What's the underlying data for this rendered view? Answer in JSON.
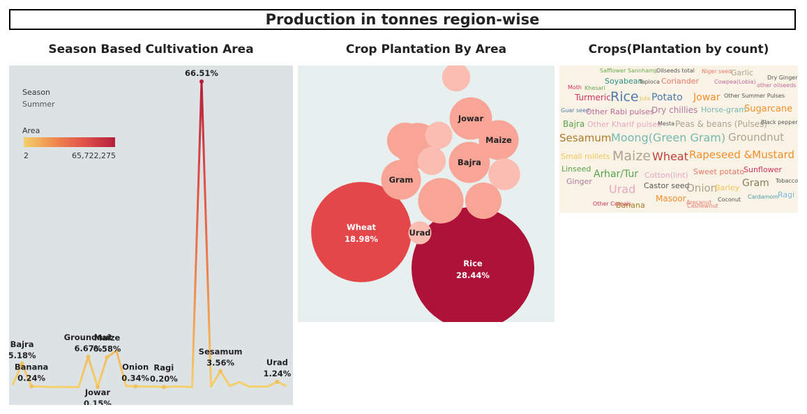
{
  "title": "Production in tonnes region-wise",
  "sections": {
    "line": "Season Based Cultivation Area",
    "bubble": "Crop Plantation By Area",
    "cloud": "Crops(Plantation by count)"
  },
  "legend": {
    "filter_label": "Season",
    "filter_value": "Summer",
    "color_label": "Area",
    "color_min": "2",
    "color_max": "65,722,275",
    "colors": [
      "#f4d06a",
      "#ef8a4e",
      "#e0504a",
      "#b51f3b"
    ]
  },
  "chart_data": [
    {
      "type": "line",
      "title": "Season Based Cultivation Area",
      "ylabel": "",
      "xlabel": "",
      "unit": "% of area",
      "ylim": [
        0,
        70
      ],
      "values": [
        0.5,
        5.18,
        0.24,
        0.2,
        0.1,
        0.15,
        0.1,
        0.1,
        6.67,
        0.15,
        6.58,
        8.0,
        0.34,
        0.25,
        0.2,
        0.2,
        0.1,
        0.2,
        0.2,
        0.1,
        66.51,
        0.2,
        3.56,
        0.3,
        1.2,
        0.2,
        0.2,
        0.2,
        1.24,
        0.3
      ],
      "point_labels": [
        {
          "index": 1,
          "name": "Bajra",
          "value": "5.18%",
          "pos": "above"
        },
        {
          "index": 2,
          "name": "Banana",
          "value": "0.24%",
          "pos": "above"
        },
        {
          "index": 8,
          "name": "Groundnut",
          "value": "6.67%",
          "pos": "above"
        },
        {
          "index": 9,
          "name": "Jowar",
          "value": "0.15%",
          "pos": "below"
        },
        {
          "index": 10,
          "name": "Maize",
          "value": "6.58%",
          "pos": "above"
        },
        {
          "index": 13,
          "name": "Onion",
          "value": "0.34%",
          "pos": "above"
        },
        {
          "index": 16,
          "name": "Ragi",
          "value": "0.20%",
          "pos": "above"
        },
        {
          "index": 20,
          "name": "Rice",
          "value": "66.51%",
          "pos": "above"
        },
        {
          "index": 22,
          "name": "Sesamum",
          "value": "3.56%",
          "pos": "above"
        },
        {
          "index": 28,
          "name": "Urad",
          "value": "1.24%",
          "pos": "above"
        }
      ]
    },
    {
      "type": "bubble",
      "title": "Crop Plantation By Area",
      "bubbles": [
        {
          "name": "Rice",
          "value": "28.44%",
          "share": 28.44,
          "color": "#ae1238"
        },
        {
          "name": "Wheat",
          "value": "18.98%",
          "share": 18.98,
          "color": "#e4474a"
        },
        {
          "name": "Jowar",
          "value": "",
          "share": 3.4,
          "color": "#f8a597"
        },
        {
          "name": "Maize",
          "value": "",
          "share": 3.0,
          "color": "#f8a597"
        },
        {
          "name": "Bajra",
          "value": "",
          "share": 3.2,
          "color": "#f8a597"
        },
        {
          "name": "Gram",
          "value": "",
          "share": 3.0,
          "color": "#f8a597"
        },
        {
          "name": "Urad",
          "value": "",
          "share": 1.0,
          "color": "#fbbcb1"
        },
        {
          "name": "",
          "value": "",
          "share": 3.9,
          "color": "#f8a597"
        },
        {
          "name": "",
          "value": "",
          "share": 3.9,
          "color": "#f8a597"
        },
        {
          "name": "",
          "value": "",
          "share": 2.5,
          "color": "#f8a597"
        },
        {
          "name": "",
          "value": "",
          "share": 2.5,
          "color": "#f8a597"
        },
        {
          "name": "",
          "value": "",
          "share": 1.5,
          "color": "#fbbcb1"
        },
        {
          "name": "",
          "value": "",
          "share": 1.5,
          "color": "#fbbcb1"
        },
        {
          "name": "",
          "value": "",
          "share": 1.4,
          "color": "#fbbcb1"
        },
        {
          "name": "",
          "value": "",
          "share": 1.9,
          "color": "#fbbcb1"
        }
      ]
    }
  ],
  "word_cloud": [
    {
      "text": "Safflower",
      "size": 8,
      "color": "#6aa84f"
    },
    {
      "text": "Sannhamp",
      "size": 8,
      "color": "#6aa84f"
    },
    {
      "text": "Oilseeds total",
      "size": 8,
      "color": "#555555"
    },
    {
      "text": "Niger seed",
      "size": 8,
      "color": "#e8776a"
    },
    {
      "text": "Garlic",
      "size": 11,
      "color": "#b0a090"
    },
    {
      "text": "Dry Ginger",
      "size": 8,
      "color": "#555555"
    },
    {
      "text": "Soyabean",
      "size": 11,
      "color": "#2f8f85"
    },
    {
      "text": "Tapioca",
      "size": 8,
      "color": "#555555"
    },
    {
      "text": "Coriander",
      "size": 11,
      "color": "#e8776a"
    },
    {
      "text": "Cowpea(Lobia)",
      "size": 8,
      "color": "#c0689a"
    },
    {
      "text": "other oilseeds",
      "size": 8,
      "color": "#c0689a"
    },
    {
      "text": "Moth",
      "size": 8,
      "color": "#d0345a"
    },
    {
      "text": "Khesari",
      "size": 8,
      "color": "#6aa84f"
    },
    {
      "text": "Turmeric",
      "size": 12,
      "color": "#d0345a"
    },
    {
      "text": "Rice",
      "size": 19,
      "color": "#4e79a7"
    },
    {
      "text": "Jute",
      "size": 8,
      "color": "#e9c46a"
    },
    {
      "text": "Potato",
      "size": 14,
      "color": "#4e79a7"
    },
    {
      "text": "Jowar",
      "size": 14,
      "color": "#f28e2b"
    },
    {
      "text": "Other Summer Pulses",
      "size": 8,
      "color": "#555555"
    },
    {
      "text": "Guar seed",
      "size": 8,
      "color": "#4e79a7"
    },
    {
      "text": "Other Rabi pulses",
      "size": 11,
      "color": "#c0689a"
    },
    {
      "text": "Dry chillies",
      "size": 12,
      "color": "#b07aa1"
    },
    {
      "text": "Horse-gram",
      "size": 11,
      "color": "#76b7b2"
    },
    {
      "text": "Sugarcane",
      "size": 13,
      "color": "#f28e2b"
    },
    {
      "text": "Bajra",
      "size": 12,
      "color": "#59a14f"
    },
    {
      "text": "Other Kharif pulses",
      "size": 11,
      "color": "#e7a6c2"
    },
    {
      "text": "Mesta",
      "size": 8,
      "color": "#555555"
    },
    {
      "text": "Peas & beans (Pulses)",
      "size": 12,
      "color": "#b0a090"
    },
    {
      "text": "Black pepper",
      "size": 8,
      "color": "#555555"
    },
    {
      "text": "Sesamum",
      "size": 15,
      "color": "#b07a2a"
    },
    {
      "text": "Moong(Green Gram)",
      "size": 16,
      "color": "#76b7b2"
    },
    {
      "text": "Groundnut",
      "size": 15,
      "color": "#b0a090"
    },
    {
      "text": "Small millets",
      "size": 11,
      "color": "#f1c75b"
    },
    {
      "text": "Maize",
      "size": 19,
      "color": "#b0a090"
    },
    {
      "text": "Wheat",
      "size": 16,
      "color": "#c0403a"
    },
    {
      "text": "Rapeseed &Mustard",
      "size": 15,
      "color": "#f28e2b"
    },
    {
      "text": "Linseed",
      "size": 11,
      "color": "#59a14f"
    },
    {
      "text": "Arhar/Tur",
      "size": 14,
      "color": "#59a14f"
    },
    {
      "text": "Cotton(lint)",
      "size": 11,
      "color": "#e7a6c2"
    },
    {
      "text": "Sweet potato",
      "size": 11,
      "color": "#e8776a"
    },
    {
      "text": "Sunflower",
      "size": 11,
      "color": "#d0345a"
    },
    {
      "text": "Ginger",
      "size": 11,
      "color": "#b07aa1"
    },
    {
      "text": "Urad",
      "size": 16,
      "color": "#e7a6c2"
    },
    {
      "text": "Castor seed",
      "size": 11,
      "color": "#555555"
    },
    {
      "text": "Onion",
      "size": 15,
      "color": "#b0a090"
    },
    {
      "text": "Barley",
      "size": 11,
      "color": "#f1c75b"
    },
    {
      "text": "Gram",
      "size": 14,
      "color": "#8c7a5a"
    },
    {
      "text": "Tobacco",
      "size": 8,
      "color": "#555555"
    },
    {
      "text": "Cardamom",
      "size": 8,
      "color": "#4e9aa7"
    },
    {
      "text": "Ragi",
      "size": 11,
      "color": "#76b7e0"
    },
    {
      "text": "Masoor",
      "size": 12,
      "color": "#f28e2b"
    },
    {
      "text": "Cashewnut",
      "size": 8,
      "color": "#e8776a"
    },
    {
      "text": "Coconut",
      "size": 8,
      "color": "#555555"
    },
    {
      "text": "Other Cereals",
      "size": 8,
      "color": "#d0345a"
    },
    {
      "text": "Banana",
      "size": 11,
      "color": "#b07a2a"
    },
    {
      "text": "Arecanut",
      "size": 8,
      "color": "#e8776a"
    }
  ]
}
